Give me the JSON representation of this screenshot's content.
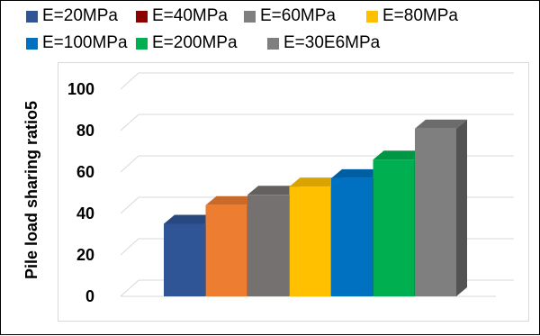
{
  "chart_data": {
    "type": "bar",
    "title": "",
    "xlabel": "",
    "ylabel": "Pile load sharing ratio5",
    "ylim": [
      0,
      100
    ],
    "yticks": [
      "0",
      "20",
      "40",
      "60",
      "80",
      "100"
    ],
    "grid": true,
    "legend_position": "top",
    "three_d": true,
    "series": [
      {
        "name": "E=20MPa",
        "color": "#2e5597",
        "value": 35
      },
      {
        "name": "E=40MPa",
        "color": "#c55a11",
        "value": 44
      },
      {
        "name": "E=60MPa",
        "color": "#767171",
        "value": 49
      },
      {
        "name": "E=80MPa",
        "color": "#ffc000",
        "value": 53
      },
      {
        "name": "E=100MPa",
        "color": "#0070c0",
        "value": 57
      },
      {
        "name": "E=200MPa",
        "color": "#00b050",
        "value": 66
      },
      {
        "name": "E=30E6MPa",
        "color": "#7f7f7f",
        "value": 81
      }
    ],
    "legend_colors": [
      "#2f5597",
      "#8b0000",
      "#7f7f7f",
      "#ffc000",
      "#0070c0",
      "#00b050",
      "#7f7f7f"
    ],
    "front_colors": [
      "#2f5597",
      "#ed7d31",
      "#767171",
      "#ffc000",
      "#0070c0",
      "#00b050",
      "#7f7f7f"
    ]
  }
}
